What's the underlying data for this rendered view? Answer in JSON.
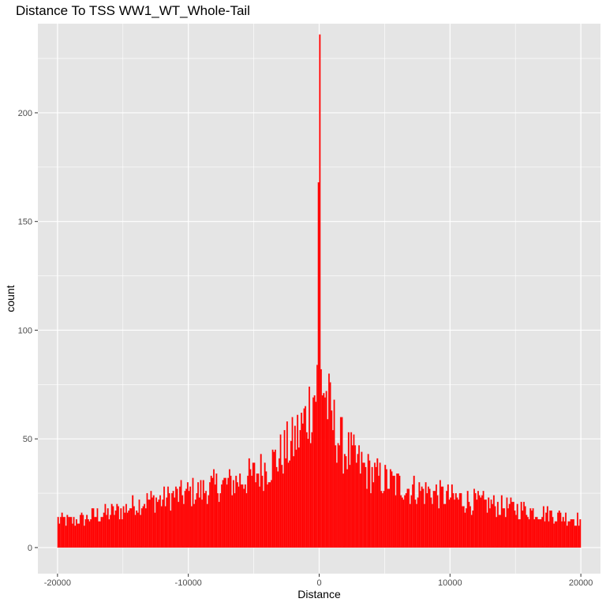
{
  "chart_data": {
    "type": "bar",
    "title": "Distance To TSS WW1_WT_Whole-Tail",
    "xlabel": "Distance",
    "ylabel": "count",
    "xlim": [
      -21500,
      21500
    ],
    "ylim": [
      -12,
      241
    ],
    "x_ticks": [
      -20000,
      -10000,
      0,
      10000,
      20000
    ],
    "x_tick_labels": [
      "-20000",
      "-10000",
      "0",
      "10000",
      "20000"
    ],
    "y_ticks": [
      0,
      50,
      100,
      150,
      200
    ],
    "y_tick_labels": [
      "0",
      "50",
      "100",
      "150",
      "200"
    ],
    "bin_range": [
      -20000,
      20000
    ],
    "bin_width": 100,
    "anchors": [
      [
        -20000,
        13
      ],
      [
        -19000,
        12
      ],
      [
        -18000,
        13
      ],
      [
        -17000,
        15
      ],
      [
        -16000,
        16
      ],
      [
        -15000,
        17
      ],
      [
        -14000,
        20
      ],
      [
        -13000,
        22
      ],
      [
        -12000,
        22
      ],
      [
        -11000,
        24
      ],
      [
        -10000,
        25
      ],
      [
        -9000,
        26
      ],
      [
        -8000,
        28
      ],
      [
        -7000,
        29
      ],
      [
        -6000,
        31
      ],
      [
        -5000,
        33
      ],
      [
        -4000,
        37
      ],
      [
        -3000,
        42
      ],
      [
        -2000,
        48
      ],
      [
        -1500,
        53
      ],
      [
        -1000,
        60
      ],
      [
        -500,
        68
      ],
      [
        -200,
        74
      ],
      [
        -100,
        77
      ],
      [
        0,
        236
      ],
      [
        100,
        80
      ],
      [
        200,
        78
      ],
      [
        500,
        70
      ],
      [
        1000,
        58
      ],
      [
        1500,
        50
      ],
      [
        2000,
        45
      ],
      [
        3000,
        39
      ],
      [
        4000,
        34
      ],
      [
        5000,
        31
      ],
      [
        6000,
        29
      ],
      [
        7000,
        27
      ],
      [
        8000,
        26
      ],
      [
        9000,
        25
      ],
      [
        10000,
        23
      ],
      [
        11000,
        22
      ],
      [
        12000,
        21
      ],
      [
        13000,
        20
      ],
      [
        14000,
        19
      ],
      [
        15000,
        18
      ],
      [
        16000,
        17
      ],
      [
        17000,
        16
      ],
      [
        18000,
        15
      ],
      [
        19000,
        14
      ],
      [
        20000,
        13
      ]
    ],
    "grid": true,
    "bar_color": "#ff0000",
    "panel_color": "#e5e5e5",
    "grid_color": "#ffffff",
    "legend": "none"
  }
}
